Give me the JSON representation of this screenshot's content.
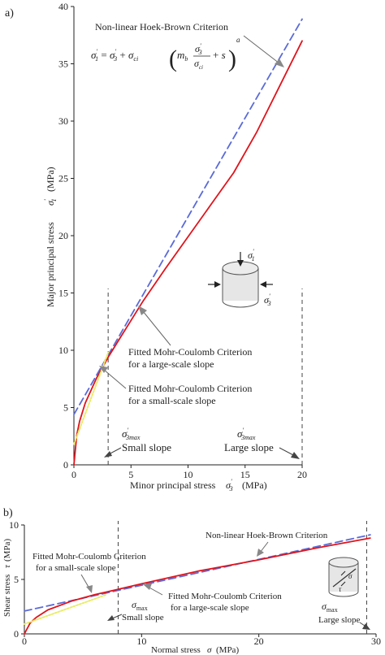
{
  "panels": {
    "a": "a)",
    "b": "b)"
  },
  "colors": {
    "hoek_brown": "#e0141c",
    "mc_large": "#5a6bd8",
    "mc_small": "#e9ec6a",
    "marker": "#444444",
    "axis": "#222222"
  },
  "chart_data": [
    {
      "id": "a",
      "type": "line",
      "xlabel": "Minor principal stress σ'3 (MPa)",
      "ylabel": "Major principal stress σ'1 (MPa)",
      "xlim": [
        0,
        20
      ],
      "ylim": [
        0,
        40
      ],
      "xticks": [
        "0",
        "5",
        "10",
        "15",
        "20"
      ],
      "yticks": [
        "0",
        "5",
        "10",
        "15",
        "20",
        "25",
        "30",
        "35",
        "40"
      ],
      "formula": "σ'1 = σ'3 + σci (mb σ'3/σci + s)^a",
      "series": [
        {
          "name": "Non-linear Hoek-Brown Criterion",
          "style": "solid",
          "x": [
            0,
            0.25,
            0.5,
            1,
            2,
            3,
            4,
            5,
            6,
            8,
            10,
            12,
            14,
            16,
            18,
            20
          ],
          "y": [
            0,
            2.6,
            3.8,
            5.4,
            7.6,
            9.4,
            11.0,
            12.6,
            14.2,
            17.1,
            19.9,
            22.7,
            25.5,
            29.0,
            33.0,
            37.0
          ]
        },
        {
          "name": "Fitted Mohr-Coulomb Criterion for a large-scale slope",
          "style": "dashed",
          "x": [
            0,
            20
          ],
          "y": [
            4.4,
            38.9
          ]
        },
        {
          "name": "Fitted Mohr-Coulomb Criterion for a small-scale slope",
          "style": "dotted",
          "x": [
            0,
            3
          ],
          "y": [
            1.8,
            9.8
          ]
        }
      ],
      "markers": [
        {
          "x": 3,
          "label": "σ'3max",
          "caption": "Small slope"
        },
        {
          "x": 20,
          "label": "σ'3max",
          "caption": "Large slope"
        }
      ],
      "annotations": [
        "Non-linear Hoek-Brown Criterion",
        "Fitted Mohr-Coulomb Criterion for a large-scale slope",
        "Fitted Mohr-Coulomb Criterion for a small-scale slope"
      ]
    },
    {
      "id": "b",
      "type": "line",
      "xlabel": "Normal stress σ (MPa)",
      "ylabel": "Shear stress τ (MPa)",
      "xlim": [
        0,
        30
      ],
      "ylim": [
        0,
        10
      ],
      "xticks": [
        "0",
        "10",
        "20",
        "30"
      ],
      "yticks": [
        "0",
        "5",
        "10"
      ],
      "series": [
        {
          "name": "Non-linear Hoek-Brown Criterion",
          "style": "solid",
          "x": [
            0,
            0.5,
            1,
            2,
            4,
            6,
            8,
            10,
            15,
            20,
            25,
            29.5
          ],
          "y": [
            0,
            1.0,
            1.5,
            2.2,
            3.0,
            3.6,
            4.1,
            4.6,
            5.8,
            6.8,
            7.9,
            8.8
          ]
        },
        {
          "name": "Fitted Mohr-Coulomb Criterion for a large-scale slope",
          "style": "dashed",
          "x": [
            0,
            29.5
          ],
          "y": [
            2.1,
            9.1
          ]
        },
        {
          "name": "Fitted Mohr-Coulomb Criterion for a small-scale slope",
          "style": "dotted",
          "x": [
            0,
            7
          ],
          "y": [
            0.9,
            3.6
          ]
        }
      ],
      "markers": [
        {
          "x": 8,
          "label": "σmax",
          "caption": "Small slope"
        },
        {
          "x": 29.2,
          "label": "σmax",
          "caption": "Large slope"
        }
      ],
      "annotations": [
        "Non-linear Hoek-Brown Criterion",
        "Fitted Mohr-Coulomb Criterion for a small-scale slope",
        "Fitted Mohr-Coulomb Criterion for a large-scale slope"
      ]
    }
  ],
  "text": {
    "a_hb_label": "Non-linear Hoek-Brown Criterion",
    "a_large_1": "Fitted Mohr-Coulomb Criterion",
    "a_large_2": "for a large-scale slope",
    "a_small_1": "Fitted Mohr-Coulomb Criterion",
    "a_small_2": "for a small-scale slope",
    "a_small_slope": "Small slope",
    "a_large_slope": "Large slope",
    "a_xlabel_text": "Minor principal stress",
    "a_xlabel_unit": "(MPa)",
    "a_ylabel_text": "Major principal stress",
    "a_ylabel_unit": "(MPa)",
    "b_hb_label": "Non-linear Hoek-Brown Criterion",
    "b_small_1": "Fitted Mohr-Coulomb Criterion",
    "b_small_2": "for a small-scale slope",
    "b_large_1": "Fitted Mohr-Coulomb Criterion",
    "b_large_2": "for a large-scale slope",
    "b_small_slope": "Small slope",
    "b_large_slope": "Large slope",
    "b_xlabel_text": "Normal stress",
    "b_xlabel_unit": "(MPa)",
    "b_ylabel_text": "Shear stress",
    "b_ylabel_unit": "(MPa)",
    "sigma": "σ",
    "tau": "τ",
    "max": "max",
    "three_max": "3max",
    "one": "1",
    "three": "3"
  }
}
